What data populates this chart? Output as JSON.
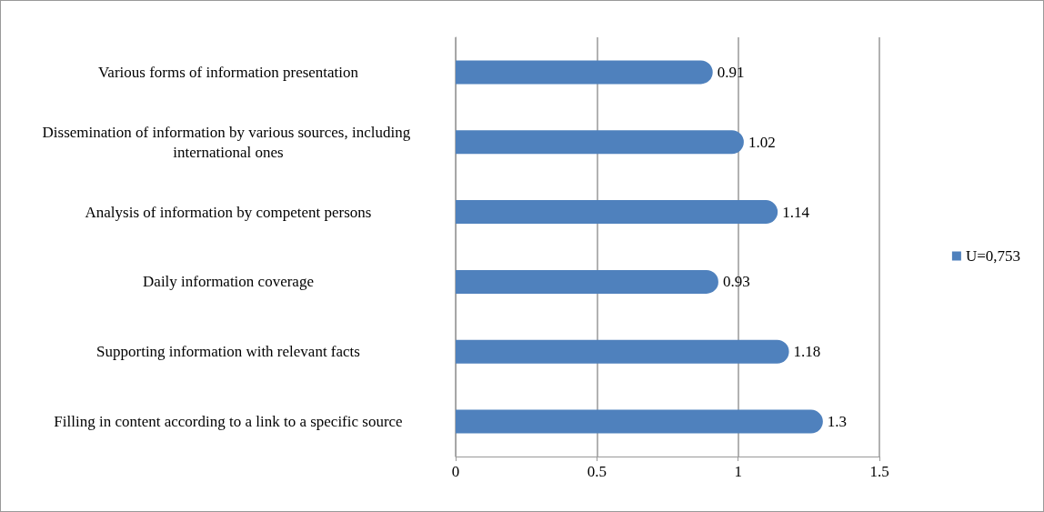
{
  "chart_data": {
    "type": "bar",
    "orientation": "horizontal",
    "categories": [
      "Various forms of information presentation",
      "Dissemination of information by various sources, including international ones",
      "Analysis of information by competent persons",
      "Daily information coverage",
      "Supporting information with relevant facts",
      "Filling in content according to a link to a specific source"
    ],
    "series": [
      {
        "name": "U=0,753",
        "color": "#4f81bd",
        "values": [
          0.91,
          1.02,
          1.14,
          0.93,
          1.18,
          1.3
        ]
      }
    ],
    "xlim": [
      0,
      1.5
    ],
    "xticks": [
      0,
      0.5,
      1,
      1.5
    ],
    "grid": "x",
    "legend": "right",
    "data_labels": true
  }
}
